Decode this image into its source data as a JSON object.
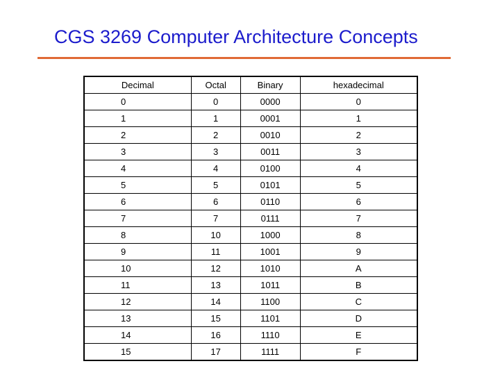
{
  "slide": {
    "title": "CGS 3269 Computer Architecture Concepts",
    "accent_color": "#e06a35",
    "title_color": "#1c1ccc"
  },
  "table": {
    "headers": [
      "Decimal",
      "Octal",
      "Binary",
      "hexadecimal"
    ],
    "rows": [
      [
        "0",
        "0",
        "0000",
        "0"
      ],
      [
        "1",
        "1",
        "0001",
        "1"
      ],
      [
        "2",
        "2",
        "0010",
        "2"
      ],
      [
        "3",
        "3",
        "0011",
        "3"
      ],
      [
        "4",
        "4",
        "0100",
        "4"
      ],
      [
        "5",
        "5",
        "0101",
        "5"
      ],
      [
        "6",
        "6",
        "0110",
        "6"
      ],
      [
        "7",
        "7",
        "0111",
        "7"
      ],
      [
        "8",
        "10",
        "1000",
        "8"
      ],
      [
        "9",
        "11",
        "1001",
        "9"
      ],
      [
        "10",
        "12",
        "1010",
        "A"
      ],
      [
        "11",
        "13",
        "1011",
        "B"
      ],
      [
        "12",
        "14",
        "1100",
        "C"
      ],
      [
        "13",
        "15",
        "1101",
        "D"
      ],
      [
        "14",
        "16",
        "1110",
        "E"
      ],
      [
        "15",
        "17",
        "1111",
        "F"
      ]
    ]
  }
}
